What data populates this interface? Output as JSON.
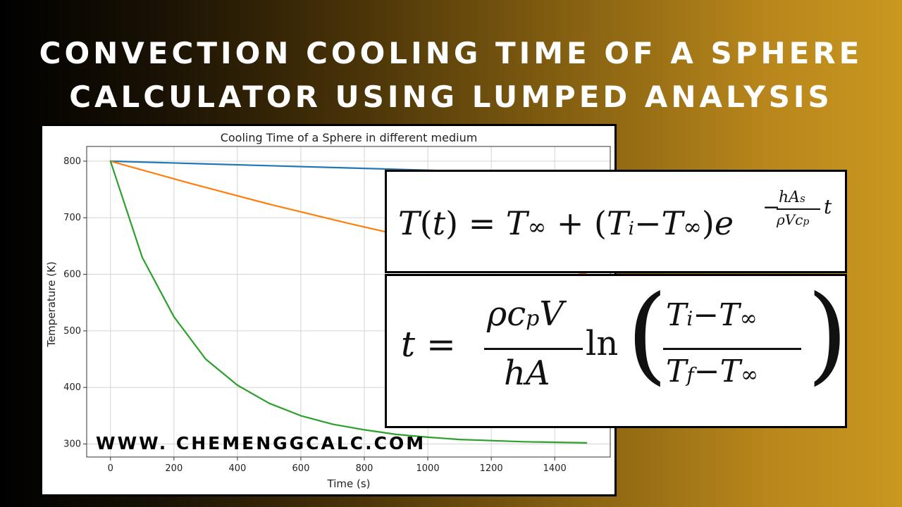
{
  "header": {
    "line1": "CONVECTION COOLING TIME OF A SPHERE",
    "line2": "CALCULATOR USING LUMPED ANALYSIS"
  },
  "website": "WWW. CHEMENGGCALC.COM",
  "formulas": {
    "temperature": "T(t) = T∞ + (Ti − T∞) e^(−hAs/(ρVcp) t)",
    "time": "t = (ρ cp V)/(hA) ln((Ti − T∞)/(Tf − T∞))"
  },
  "chart_data": {
    "type": "line",
    "title": "Cooling Time of a Sphere in different medium",
    "xlabel": "Time (s)",
    "ylabel": "Temperature (K)",
    "xlim": [
      -75,
      1575
    ],
    "ylim": [
      277,
      826
    ],
    "xticks": [
      0,
      200,
      400,
      600,
      800,
      1000,
      1200,
      1400
    ],
    "yticks": [
      300,
      400,
      500,
      600,
      700,
      800
    ],
    "grid": true,
    "colors": [
      "#1f77b4",
      "#ff7f0e",
      "#2ca02c"
    ],
    "series": [
      {
        "x": [
          0,
          250,
          500,
          750,
          1000,
          1250,
          1500
        ],
        "y": [
          800,
          796,
          792,
          788,
          784,
          780,
          777
        ]
      },
      {
        "x": [
          0,
          250,
          500,
          750,
          1000,
          1250,
          1500
        ],
        "y": [
          800,
          761,
          724,
          690,
          658,
          628,
          600
        ]
      },
      {
        "x": [
          0,
          100,
          200,
          300,
          400,
          500,
          600,
          700,
          800,
          900,
          1000,
          1100,
          1200,
          1300,
          1400,
          1500
        ],
        "y": [
          800,
          630,
          525,
          450,
          404,
          372,
          350,
          335,
          325,
          317,
          312,
          308,
          306,
          304,
          303,
          302
        ]
      }
    ]
  }
}
